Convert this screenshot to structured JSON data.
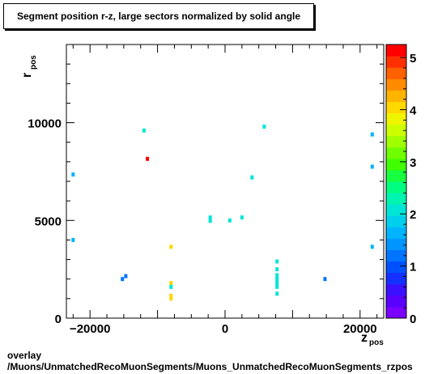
{
  "chart_data": {
    "type": "scatter",
    "title": "Segment position r-z, large sectors normalized by solid angle",
    "xlabel": "z",
    "xlabel_sub": "pos",
    "ylabel": "r",
    "ylabel_sub": "pos",
    "xlim": [
      -23500,
      23500
    ],
    "ylim": [
      0,
      14000
    ],
    "x_ticks": [
      -20000,
      0,
      20000
    ],
    "x_tick_labels": [
      "−20000",
      "0",
      "20000"
    ],
    "y_ticks": [
      0,
      5000,
      10000
    ],
    "y_tick_labels": [
      "0",
      "5000",
      "10000"
    ],
    "z_range": [
      0,
      5.25
    ],
    "z_ticks": [
      0,
      1,
      2,
      3,
      4,
      5
    ],
    "z_tick_labels": [
      "0",
      "1",
      "2",
      "3",
      "4",
      "5"
    ],
    "grid": false,
    "legend": "none",
    "colormap_colors": [
      "#7a00ff",
      "#5a00ff",
      "#3a10ff",
      "#1430ff",
      "#0050ff",
      "#0074ff",
      "#0095ff",
      "#00b4ff",
      "#00d0ee",
      "#00e6d6",
      "#00f5b0",
      "#00ff80",
      "#16ff40",
      "#40ff00",
      "#70ff00",
      "#a0ff00",
      "#ccff00",
      "#f0f500",
      "#ffd800",
      "#ffb400",
      "#ff8c00",
      "#ff6000",
      "#ff3000",
      "#ff0000"
    ],
    "points": [
      {
        "x": -22500,
        "y": 7350,
        "v": 1.6
      },
      {
        "x": -22500,
        "y": 4000,
        "v": 1.6
      },
      {
        "x": -12000,
        "y": 9600,
        "v": 2.0
      },
      {
        "x": -11500,
        "y": 8150,
        "v": 5.1
      },
      {
        "x": -15200,
        "y": 2000,
        "v": 1.2
      },
      {
        "x": -14700,
        "y": 2150,
        "v": 1.2
      },
      {
        "x": -8000,
        "y": 3650,
        "v": 4.0
      },
      {
        "x": -8000,
        "y": 1800,
        "v": 4.0
      },
      {
        "x": -8000,
        "y": 1600,
        "v": 2.0
      },
      {
        "x": -8000,
        "y": 1150,
        "v": 4.0
      },
      {
        "x": -8000,
        "y": 1000,
        "v": 4.0
      },
      {
        "x": -2200,
        "y": 5150,
        "v": 2.0
      },
      {
        "x": -2200,
        "y": 4980,
        "v": 2.0
      },
      {
        "x": 700,
        "y": 5000,
        "v": 2.0
      },
      {
        "x": 2500,
        "y": 5150,
        "v": 2.0
      },
      {
        "x": 4000,
        "y": 7200,
        "v": 2.0
      },
      {
        "x": 5800,
        "y": 9800,
        "v": 2.0
      },
      {
        "x": 7700,
        "y": 2900,
        "v": 2.0
      },
      {
        "x": 7700,
        "y": 2500,
        "v": 2.0
      },
      {
        "x": 7700,
        "y": 2200,
        "v": 2.0
      },
      {
        "x": 7700,
        "y": 2050,
        "v": 2.0
      },
      {
        "x": 7700,
        "y": 1900,
        "v": 2.0
      },
      {
        "x": 7700,
        "y": 1750,
        "v": 2.0
      },
      {
        "x": 7700,
        "y": 1600,
        "v": 2.0
      },
      {
        "x": 7700,
        "y": 1250,
        "v": 2.0
      },
      {
        "x": 14800,
        "y": 2000,
        "v": 1.2
      },
      {
        "x": 21800,
        "y": 9400,
        "v": 1.6
      },
      {
        "x": 21800,
        "y": 7750,
        "v": 1.6
      },
      {
        "x": 21800,
        "y": 3650,
        "v": 1.6
      }
    ]
  },
  "footer": {
    "line1": "overlay",
    "line2": "/Muons/UnmatchedRecoMuonSegments/Muons_UnmatchedRecoMuonSegments_rzpos"
  }
}
